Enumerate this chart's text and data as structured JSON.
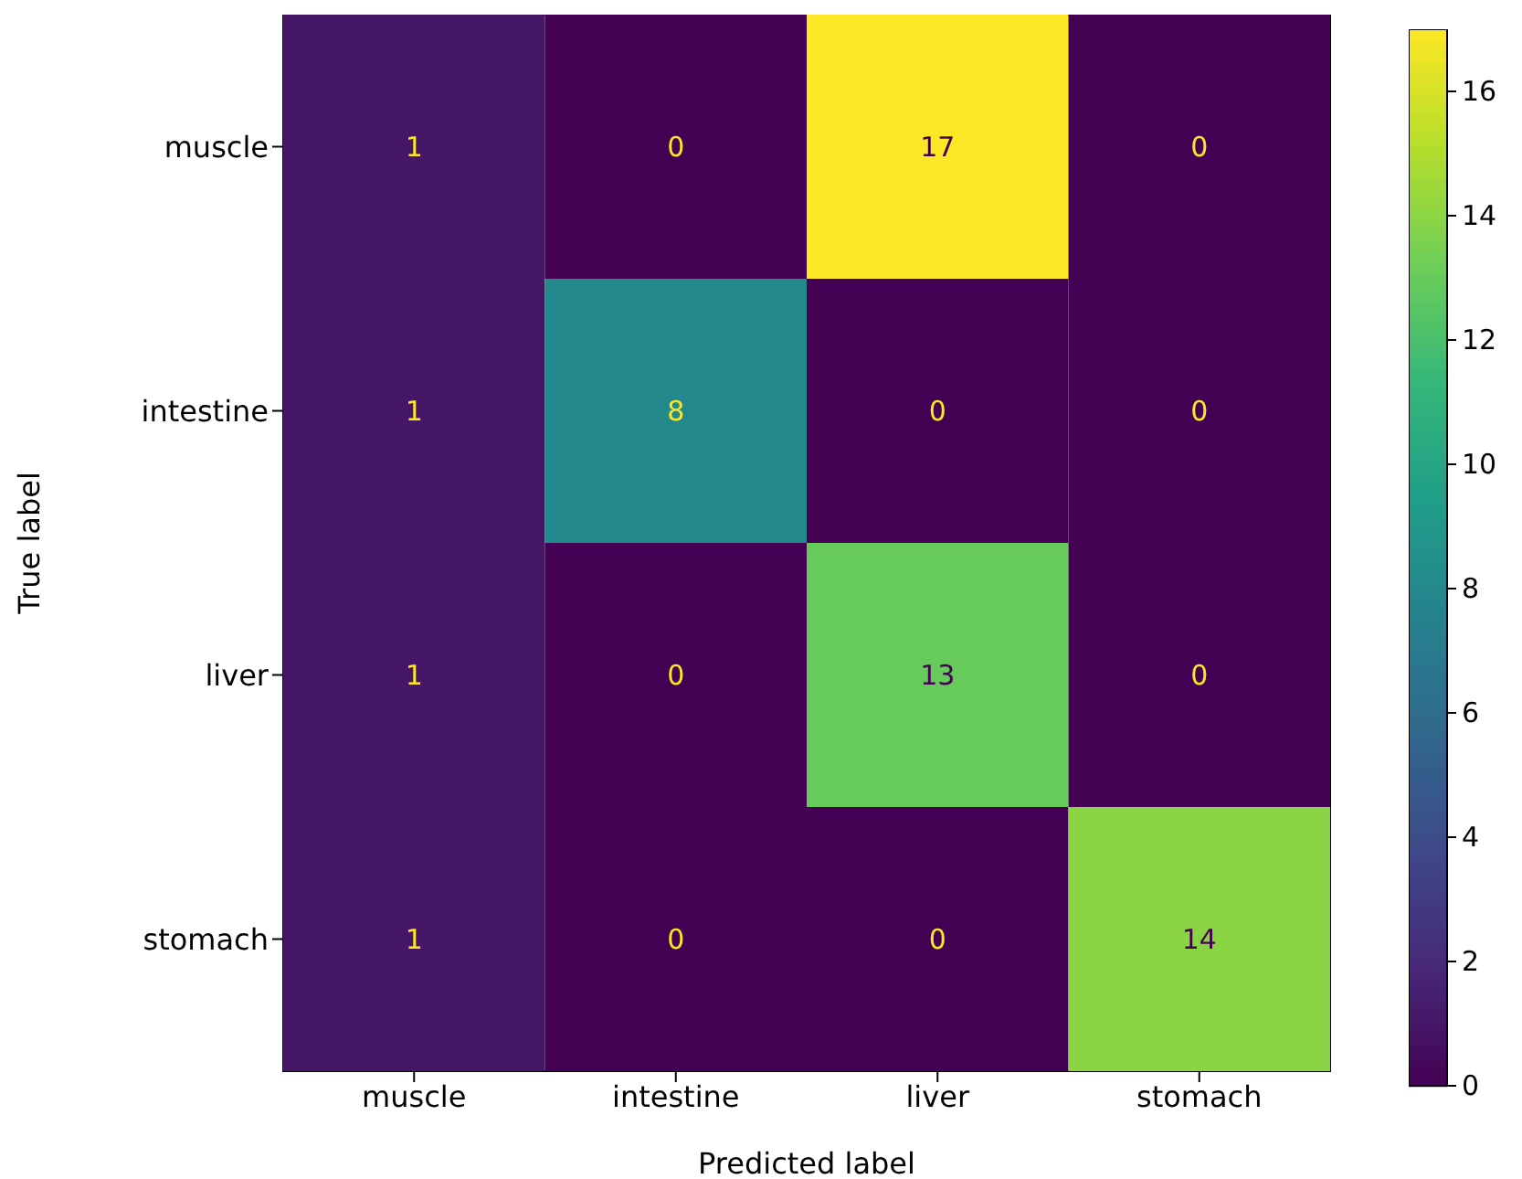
{
  "chart_data": {
    "type": "heatmap",
    "xlabel": "Predicted label",
    "ylabel": "True label",
    "categories": [
      "muscle",
      "intestine",
      "liver",
      "stomach"
    ],
    "y_categories": [
      "muscle",
      "intestine",
      "liver",
      "stomach"
    ],
    "cells": [
      [
        1,
        0,
        17,
        0
      ],
      [
        1,
        8,
        0,
        0
      ],
      [
        1,
        0,
        13,
        0
      ],
      [
        1,
        0,
        0,
        14
      ]
    ],
    "clim": [
      0,
      17
    ],
    "cticks": [
      0,
      2,
      4,
      6,
      8,
      10,
      12,
      14,
      16
    ],
    "data_labels": true
  }
}
